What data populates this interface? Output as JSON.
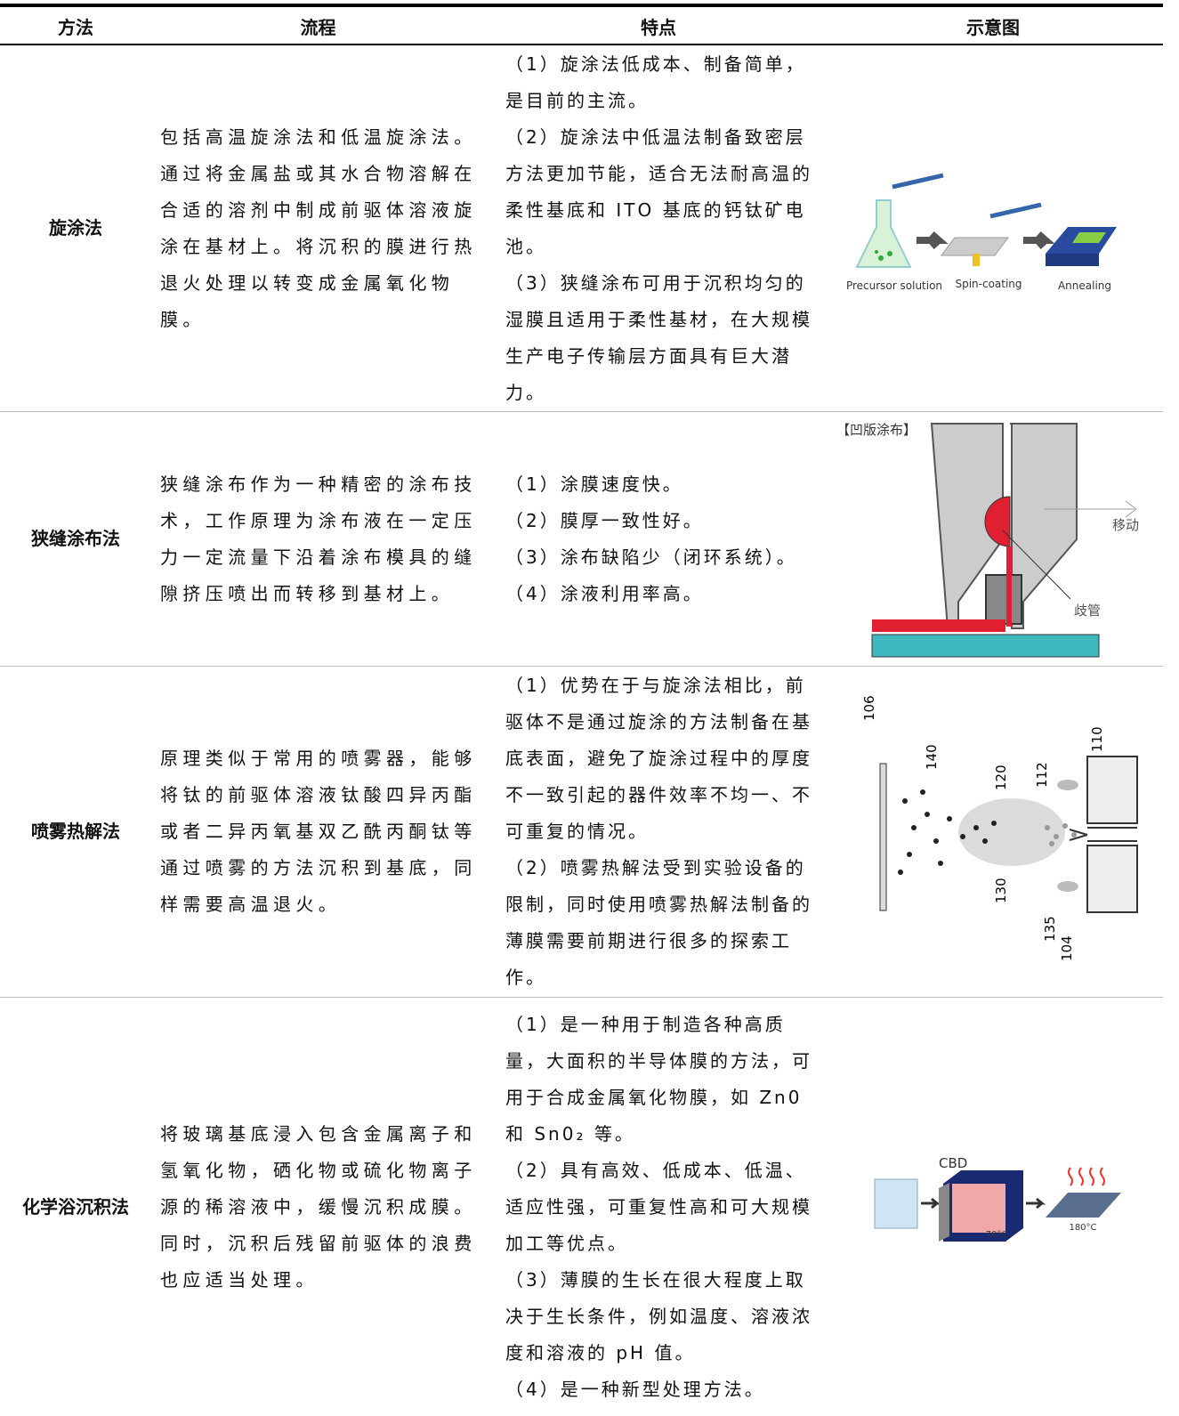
{
  "header": {
    "columns": [
      "方法",
      "流程",
      "特点",
      "示意图"
    ]
  },
  "rows": [
    {
      "method": "旋涂法",
      "process": "包括高温旋涂法和低温旋涂法。通过将金属盐或其水合物溶解在合适的溶剂中制成前驱体溶液旋涂在基材上。将沉积的膜进行热退火处理以转变成金属氧化物膜。",
      "features": [
        "（1）旋涂法低成本、制备简单，是目前的主流。",
        "（2）旋涂法中低温法制备致密层方法更加节能，适合无法耐高温的柔性基底和 ITO 基底的钙钛矿电池。",
        "（3）狭缝涂布可用于沉积均匀的湿膜且适用于柔性基材，在大规模生产电子传输层方面具有巨大潜力。"
      ],
      "diagram": {
        "labels": [
          "Precursor solution",
          "Spin-coating",
          "Annealing"
        ]
      }
    },
    {
      "method": "狭缝涂布法",
      "process": "狭缝涂布作为一种精密的涂布技术，工作原理为涂布液在一定压力一定流量下沿着涂布模具的缝隙挤压喷出而转移到基材上。",
      "features": [
        "（1）涂膜速度快。",
        "（2）膜厚一致性好。",
        "（3）涂布缺陷少（闭环系统）。",
        "（4）涂液利用率高。"
      ],
      "diagram": {
        "labels": [
          "【凹版涂布】",
          "移动",
          "歧管"
        ]
      }
    },
    {
      "method": "喷雾热解法",
      "process": "原理类似于常用的喷雾器，能够将钛的前驱体溶液钛酸四异丙酯或者二异丙氧基双乙酰丙酮钛等通过喷雾的方法沉积到基底，同样需要高温退火。",
      "features": [
        "（1）优势在于与旋涂法相比，前驱体不是通过旋涂的方法制备在基底表面，避免了旋涂过程中的厚度不一致引起的器件效率不均一、不可重复的情况。",
        "（2）喷雾热解法受到实验设备的限制，同时使用喷雾热解法制备的薄膜需要前期进行很多的探索工作。"
      ],
      "diagram": {
        "labels": [
          "106",
          "140",
          "120",
          "112",
          "110",
          "130",
          "135",
          "104"
        ]
      }
    },
    {
      "method": "化学浴沉积法",
      "process": "将玻璃基底浸入包含金属离子和氢氧化物，硒化物或硫化物离子源的稀溶液中，缓慢沉积成膜。同时，沉积后残留前驱体的浪费也应适当处理。",
      "features": [
        "（1）是一种用于制造各种高质量，大面积的半导体膜的方法，可用于合成金属氧化物膜，如 Zn0 和 Sn0₂ 等。",
        "（2）具有高效、低成本、低温、适应性强，可重复性高和可大规模加工等优点。",
        "（3）薄膜的生长在很大程度上取决于生长条件，例如温度、溶液浓度和溶液的 pH 值。",
        "（4）是一种新型处理方法。"
      ],
      "diagram": {
        "labels": [
          "CBD",
          "70°C",
          "180°C"
        ]
      }
    }
  ]
}
